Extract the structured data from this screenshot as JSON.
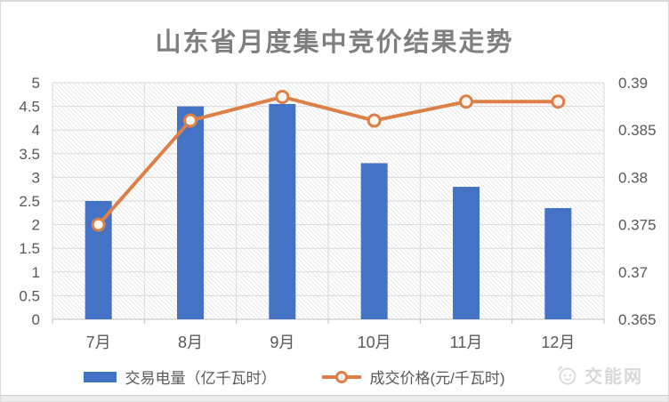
{
  "title": "山东省月度集中竞价结果走势",
  "watermark": {
    "name": "交能网"
  },
  "legend": [
    {
      "label": "交易电量（亿千瓦时）",
      "type": "bar"
    },
    {
      "label": "成交价格(元/千瓦时)",
      "type": "line"
    }
  ],
  "colors": {
    "bar": "#4472C4",
    "line": "#DD8047",
    "marker_fill": "#FDF6EE",
    "grid": "#D9D9D9",
    "axis_line": "#C0C0C0",
    "hatch": "#E8E8E8",
    "title_text": "#7F7F7F",
    "axis_text": "#595959",
    "watermark_text": "#D8D8D8"
  },
  "chart_data": {
    "type": "combo-bar-line",
    "title": "山东省月度集中竞价结果走势",
    "categories": [
      "7月",
      "8月",
      "9月",
      "10月",
      "11月",
      "12月"
    ],
    "series": [
      {
        "name": "交易电量（亿千瓦时）",
        "type": "bar",
        "axis": "left",
        "values": [
          2.5,
          4.5,
          4.55,
          3.3,
          2.8,
          2.35
        ]
      },
      {
        "name": "成交价格(元/千瓦时)",
        "type": "line",
        "axis": "right",
        "values": [
          0.375,
          0.386,
          0.3885,
          0.386,
          0.388,
          0.388
        ]
      }
    ],
    "left_axis": {
      "min": 0,
      "max": 5,
      "ticks": [
        "0",
        "0.5",
        "1",
        "1.5",
        "2",
        "2.5",
        "3",
        "3.5",
        "4",
        "4.5",
        "5"
      ]
    },
    "right_axis": {
      "min": 0.365,
      "max": 0.39,
      "ticks": [
        "0.365",
        "0.37",
        "0.375",
        "0.38",
        "0.385",
        "0.39"
      ]
    },
    "grid": true,
    "plot_background": "light-diagonal-hatch",
    "legend_position": "bottom"
  }
}
